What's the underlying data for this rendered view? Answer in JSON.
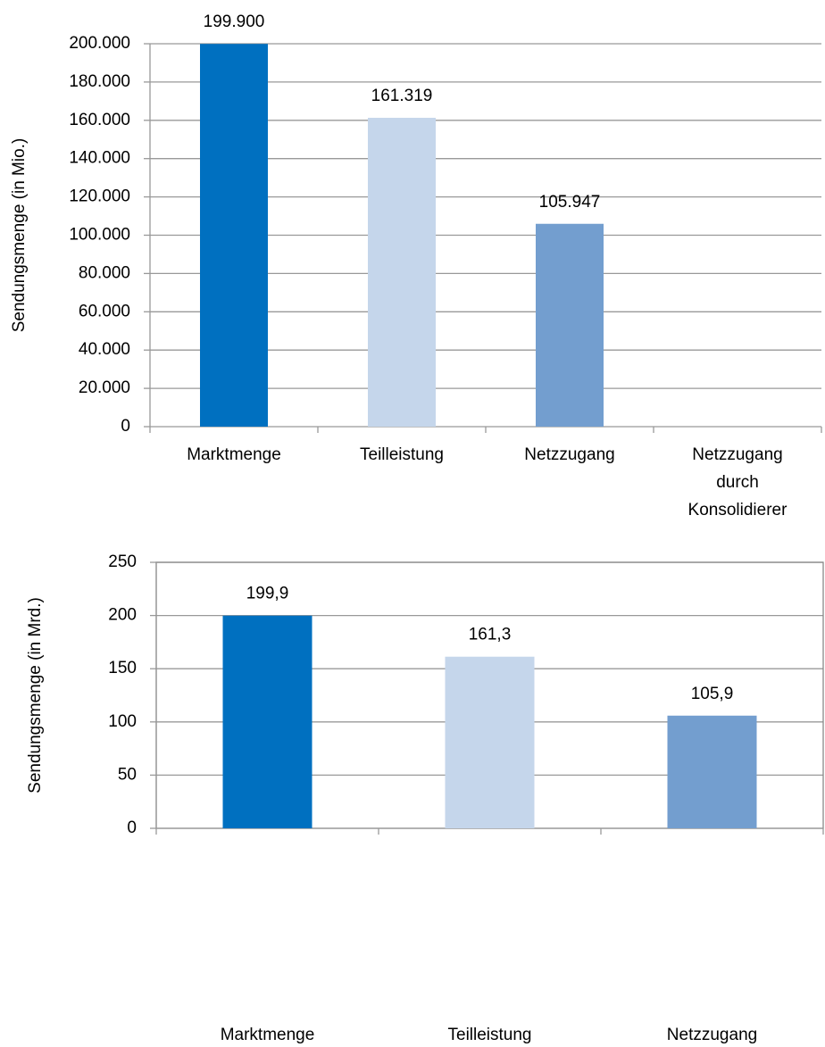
{
  "chart_data": [
    {
      "type": "bar",
      "y_label": "Sendungsmenge  (in Mio.)",
      "categories": [
        "Marktmenge",
        "Teilleistung",
        "Netzzugang",
        "Netzzugang durch Konsolidierer"
      ],
      "values": [
        199900,
        161319,
        105947,
        null
      ],
      "value_labels": [
        "199.900",
        "161.319",
        "105.947",
        null
      ],
      "colors": [
        "#0070c0",
        "#c5d6eb",
        "#739ecf",
        "#739ecf"
      ],
      "ylim": [
        0,
        200000
      ],
      "yticks": [
        0,
        {
          "value": 20000,
          "label": "20.000"
        },
        {
          "value": 40000,
          "label": "40.000"
        },
        {
          "value": 60000,
          "label": "60.000"
        },
        {
          "value": 80000,
          "label": "80.000"
        },
        {
          "value": 100000,
          "label": "100.000"
        },
        {
          "value": 120000,
          "label": "120.000"
        },
        {
          "value": 140000,
          "label": "140.000"
        },
        {
          "value": 160000,
          "label": "160.000"
        },
        {
          "value": 180000,
          "label": "180.000"
        },
        {
          "value": 200000,
          "label": "200.000"
        }
      ],
      "grid": true
    },
    {
      "type": "bar",
      "y_label": "Sendungsmenge (in Mrd.)",
      "categories": [
        "Marktmenge",
        "Teilleistung",
        "Netzzugang"
      ],
      "values": [
        199.9,
        161.3,
        105.9
      ],
      "value_labels": [
        "199,9",
        "161,3",
        "105,9"
      ],
      "colors": [
        "#0070c0",
        "#c5d6eb",
        "#739ecf"
      ],
      "ylim": [
        0,
        250
      ],
      "yticks": [
        0,
        50,
        100,
        150,
        200,
        250
      ],
      "grid": true,
      "frame": true
    }
  ]
}
